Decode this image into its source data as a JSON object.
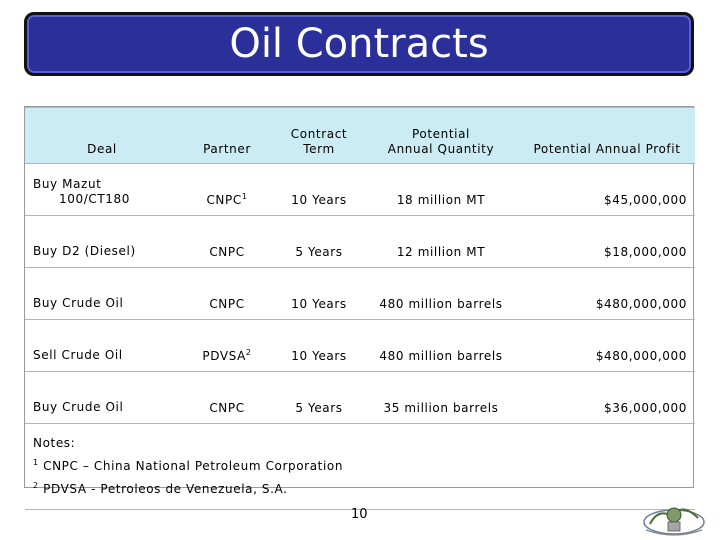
{
  "title": "Oil Contracts",
  "table": {
    "headers": {
      "deal": "Deal",
      "partner": "Partner",
      "term_line1": "Contract",
      "term_line2": "Term",
      "qty_line1": "Potential",
      "qty_line2": "Annual Quantity",
      "profit": "Potential Annual Profit"
    },
    "rows": [
      {
        "deal_line1": "Buy Mazut",
        "deal_line2": "100/CT180",
        "partner": "CNPC",
        "partner_sup": "1",
        "term": "10 Years",
        "quantity": "18 million MT",
        "profit": "$45,000,000"
      },
      {
        "deal_line1": "Buy D2 (Diesel)",
        "partner": "CNPC",
        "term": "5 Years",
        "quantity": "12 million MT",
        "profit": "$18,000,000"
      },
      {
        "deal_line1": "Buy Crude Oil",
        "partner": "CNPC",
        "term": "10 Years",
        "quantity": "480 million barrels",
        "profit": "$480,000,000"
      },
      {
        "deal_line1": "Sell Crude Oil",
        "partner": "PDVSA",
        "partner_sup": "2",
        "term": "10 Years",
        "quantity": "480 million barrels",
        "profit": "$480,000,000"
      },
      {
        "deal_line1": "Buy Crude Oil",
        "partner": "CNPC",
        "term": "5 Years",
        "quantity": "35 million barrels",
        "profit": "$36,000,000"
      }
    ],
    "notes": {
      "label": "Notes:",
      "note1_num": "1",
      "note1": "CNPC – China National Petroleum Corporation",
      "note2_num": "2",
      "note2": "PDVSA - Petroleos de Venezuela, S.A."
    }
  },
  "page_number": "10",
  "colors": {
    "banner": "#2b2f9a",
    "header_bg": "#ccecf5"
  }
}
